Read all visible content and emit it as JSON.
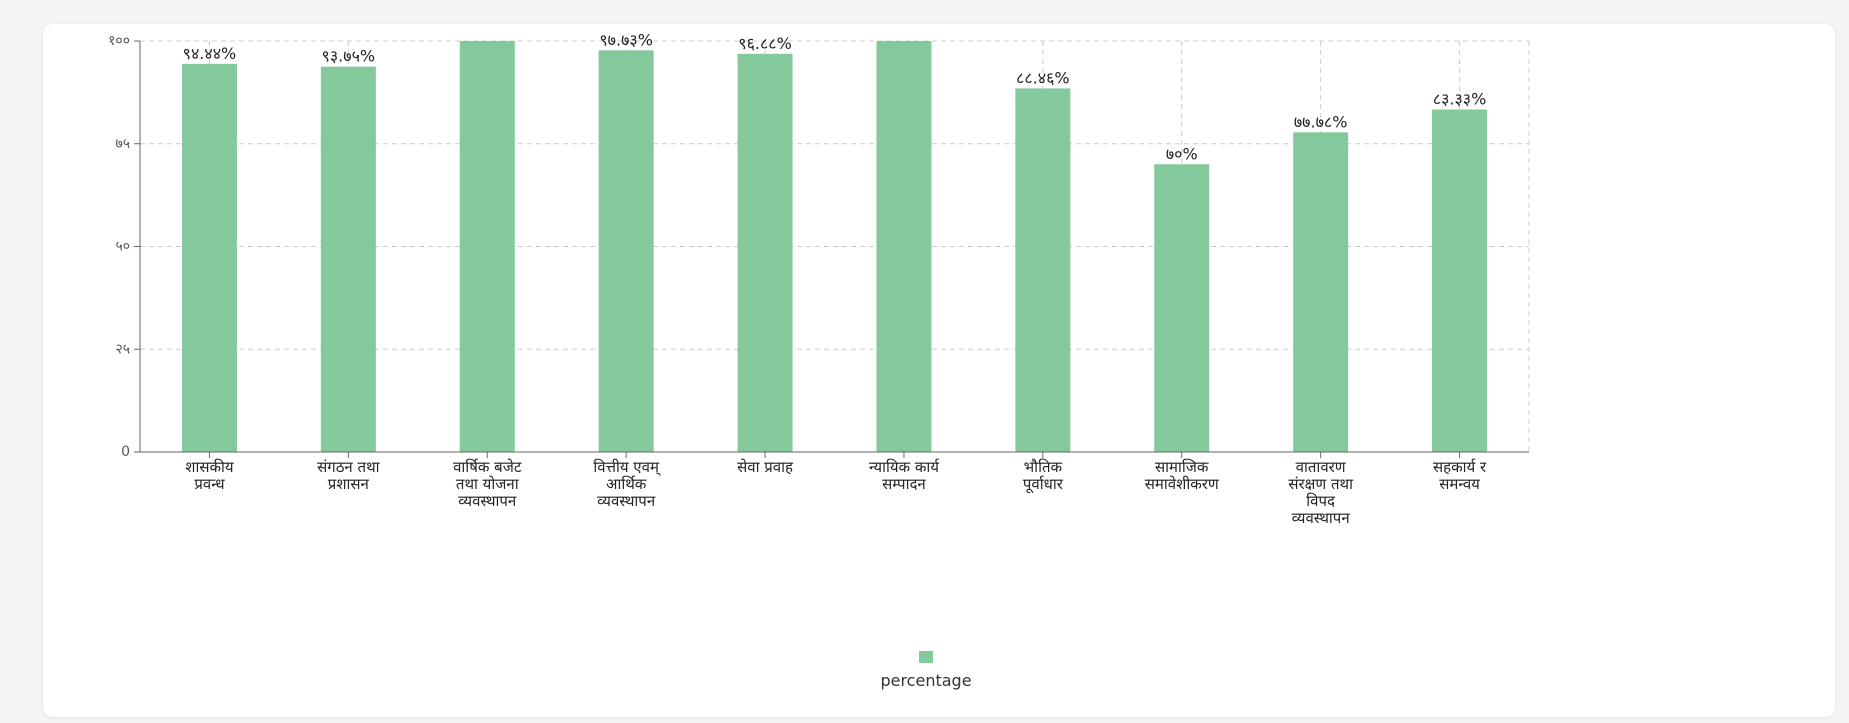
{
  "chart_data": {
    "type": "bar",
    "categories": [
      [
        "शासकीय",
        "प्रवन्ध"
      ],
      [
        "संगठन तथा",
        "प्रशासन"
      ],
      [
        "वार्षिक बजेट",
        "तथा योजना",
        "व्यवस्थापन"
      ],
      [
        "वित्तीय एवम्",
        "आर्थिक",
        "व्यवस्थापन"
      ],
      [
        "सेवा प्रवाह"
      ],
      [
        "न्यायिक कार्य",
        "सम्पादन"
      ],
      [
        "भौतिक",
        "पूर्वाधार"
      ],
      [
        "सामाजिक",
        "समावेशीकरण"
      ],
      [
        "वातावरण",
        "संरक्षण तथा",
        "विपद",
        "व्यवस्थापन"
      ],
      [
        "सहकार्य र",
        "समन्वय"
      ]
    ],
    "values": [
      94.44,
      93.75,
      100,
      97.73,
      96.88,
      100,
      88.46,
      70,
      77.78,
      83.33
    ],
    "data_labels": [
      "९४.४४%",
      "९३.७५%",
      "",
      "९७.७३%",
      "९६.८८%",
      "",
      "८८.४६%",
      "७०%",
      "७७.७८%",
      "८३.३३%"
    ],
    "y_ticks": [
      {
        "value": 0,
        "label": "0"
      },
      {
        "value": 25,
        "label": "२५"
      },
      {
        "value": 50,
        "label": "५०"
      },
      {
        "value": 75,
        "label": "७५"
      },
      {
        "value": 100,
        "label": "१००"
      }
    ],
    "ylim": [
      0,
      100
    ],
    "grid": true,
    "legend_position": "bottom-center",
    "series": [
      {
        "name": "percentage",
        "color": "#84c99b"
      }
    ]
  }
}
